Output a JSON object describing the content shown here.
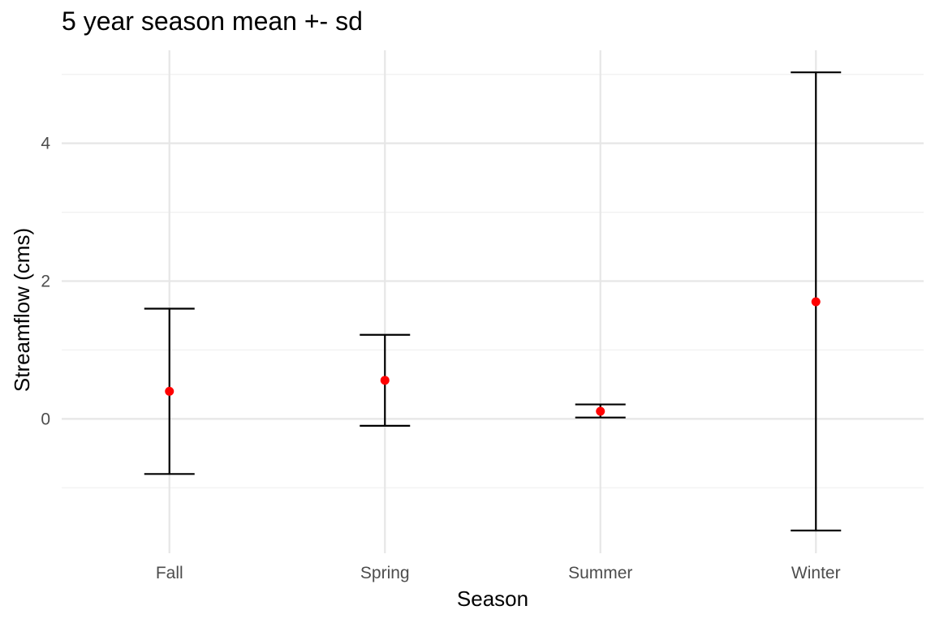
{
  "chart_data": {
    "type": "scatter",
    "title": "5 year season mean +- sd",
    "xlabel": "Season",
    "ylabel": "Streamflow (cms)",
    "categories": [
      "Fall",
      "Spring",
      "Summer",
      "Winter"
    ],
    "mean": [
      0.4,
      0.56,
      0.11,
      1.7
    ],
    "lower": [
      -0.8,
      -0.1,
      0.02,
      -1.62
    ],
    "upper": [
      1.6,
      1.22,
      0.21,
      5.03
    ],
    "ylim": [
      -1.95,
      5.35
    ],
    "yticks": [
      0,
      2,
      4
    ],
    "ytick_labels": [
      "0",
      "2",
      "4"
    ],
    "grid": true,
    "colors": {
      "point": "#ff0000",
      "errorbar": "#000000",
      "grid_major": "#e6e6e6",
      "grid_minor": "#f0f0f0"
    }
  }
}
